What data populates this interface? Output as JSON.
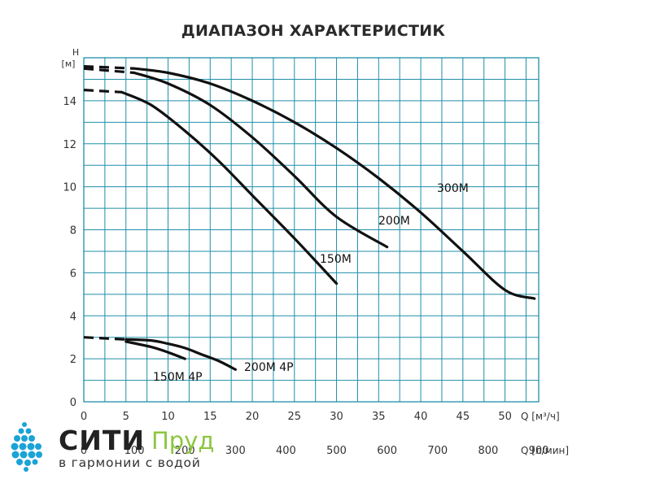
{
  "chart_data": {
    "type": "line",
    "title": "ДИАПАЗОН ХАРАКТЕРИСТИК",
    "ylabel": "H",
    "yunit": "[м]",
    "xlabel": "Q [м³/ч]",
    "x2label": "Q [л/мин]",
    "xlim": [
      0,
      54
    ],
    "ylim": [
      0,
      16
    ],
    "xticks": [
      0,
      5,
      10,
      15,
      20,
      25,
      30,
      35,
      40,
      45,
      50
    ],
    "yticks": [
      0,
      2,
      4,
      6,
      8,
      10,
      12,
      14
    ],
    "x2ticks": [
      0,
      100,
      200,
      300,
      400,
      500,
      600,
      700,
      800,
      900
    ],
    "grid": true,
    "series": [
      {
        "name": "300M",
        "dashed": [
          [
            0,
            15.6
          ],
          [
            6,
            15.5
          ]
        ],
        "x": [
          6,
          10,
          15,
          20,
          25,
          30,
          35,
          40,
          45,
          50,
          53.5
        ],
        "y": [
          15.5,
          15.3,
          14.8,
          14.0,
          13.0,
          11.8,
          10.4,
          8.8,
          7.0,
          5.2,
          4.8
        ]
      },
      {
        "name": "200M",
        "dashed": [
          [
            0,
            15.5
          ],
          [
            6,
            15.3
          ]
        ],
        "x": [
          6,
          10,
          15,
          20,
          25,
          30,
          36
        ],
        "y": [
          15.3,
          14.8,
          13.8,
          12.3,
          10.5,
          8.6,
          7.2
        ]
      },
      {
        "name": "150M",
        "dashed": [
          [
            0,
            14.5
          ],
          [
            4.5,
            14.4
          ]
        ],
        "x": [
          4.5,
          8,
          12,
          16,
          20,
          25,
          30
        ],
        "y": [
          14.4,
          13.8,
          12.6,
          11.2,
          9.6,
          7.6,
          5.5
        ]
      },
      {
        "name": "200M 4P",
        "dashed": [
          [
            0,
            3.0
          ],
          [
            5,
            2.9
          ]
        ],
        "x": [
          5,
          8,
          10,
          12,
          14,
          16,
          18
        ],
        "y": [
          2.9,
          2.85,
          2.7,
          2.5,
          2.2,
          1.9,
          1.5
        ]
      },
      {
        "name": "150M 4P",
        "x": [
          5,
          8,
          10,
          12
        ],
        "y": [
          2.8,
          2.55,
          2.3,
          2.0
        ]
      }
    ]
  },
  "brand": {
    "name_main": "СИТИ",
    "name_accent": "Пруд",
    "tagline": "в гармонии с водой",
    "accent_color": "#8cc63f",
    "logo_color": "#1ba3d6"
  }
}
